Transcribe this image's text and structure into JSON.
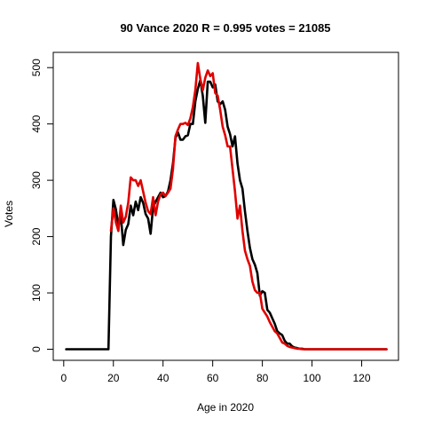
{
  "chart_data": {
    "type": "line",
    "title": "90 Vance 2020 R = 0.995 votes = 21085",
    "xlabel": "Age in 2020",
    "ylabel": "Votes",
    "xlim": [
      1,
      130
    ],
    "ylim": [
      0,
      510
    ],
    "xticks": [
      0,
      20,
      40,
      60,
      80,
      100,
      120
    ],
    "yticks": [
      0,
      100,
      200,
      300,
      400,
      500
    ],
    "grid": false,
    "legend": "none",
    "series": [
      {
        "color": "#000000",
        "x": [
          1,
          2,
          3,
          4,
          5,
          6,
          7,
          8,
          9,
          10,
          11,
          12,
          13,
          14,
          15,
          16,
          17,
          18,
          19,
          20,
          21,
          22,
          23,
          24,
          25,
          26,
          27,
          28,
          29,
          30,
          31,
          32,
          33,
          34,
          35,
          36,
          37,
          38,
          39,
          40,
          41,
          42,
          43,
          44,
          45,
          46,
          47,
          48,
          49,
          50,
          51,
          52,
          53,
          54,
          55,
          56,
          57,
          58,
          59,
          60,
          61,
          62,
          63,
          64,
          65,
          66,
          67,
          68,
          69,
          70,
          71,
          72,
          73,
          74,
          75,
          76,
          77,
          78,
          79,
          80,
          81,
          82,
          83,
          84,
          85,
          86,
          87,
          88,
          89,
          90,
          91,
          92,
          93,
          94,
          95,
          96,
          97,
          98,
          99,
          100,
          101,
          102,
          103,
          104,
          105,
          106,
          107,
          108,
          109,
          110,
          111,
          112,
          113,
          114,
          115,
          116,
          117,
          118,
          119,
          120,
          121,
          122,
          123,
          124,
          125,
          126,
          127,
          128,
          129,
          130
        ],
        "y": [
          0,
          0,
          0,
          0,
          0,
          0,
          0,
          0,
          0,
          0,
          0,
          0,
          0,
          0,
          0,
          0,
          0,
          0,
          200,
          265,
          248,
          218,
          238,
          185,
          212,
          222,
          255,
          238,
          262,
          247,
          270,
          260,
          240,
          232,
          205,
          252,
          262,
          270,
          278,
          270,
          272,
          280,
          300,
          330,
          375,
          385,
          372,
          372,
          378,
          380,
          400,
          400,
          440,
          462,
          478,
          450,
          402,
          475,
          475,
          465,
          470,
          440,
          435,
          440,
          425,
          395,
          382,
          360,
          378,
          330,
          300,
          285,
          245,
          210,
          180,
          160,
          150,
          135,
          95,
          103,
          100,
          70,
          65,
          55,
          45,
          32,
          28,
          25,
          15,
          10,
          10,
          5,
          3,
          2,
          1,
          1,
          0,
          0,
          0,
          0,
          0,
          0,
          0,
          0,
          0,
          0,
          0,
          0,
          0,
          0,
          0,
          0,
          0,
          0,
          0,
          0,
          0,
          0,
          0,
          0,
          0,
          0,
          0,
          0,
          0,
          0,
          0,
          0,
          0,
          0
        ]
      },
      {
        "color": "#e00000",
        "x": [
          19,
          20,
          21,
          22,
          23,
          24,
          25,
          26,
          27,
          28,
          29,
          30,
          31,
          32,
          33,
          34,
          35,
          36,
          37,
          38,
          39,
          40,
          41,
          42,
          43,
          44,
          45,
          46,
          47,
          48,
          49,
          50,
          51,
          52,
          53,
          54,
          55,
          56,
          57,
          58,
          59,
          60,
          61,
          62,
          63,
          64,
          65,
          66,
          67,
          68,
          69,
          70,
          71,
          72,
          73,
          74,
          75,
          76,
          77,
          78,
          79,
          80,
          81,
          82,
          83,
          84,
          85,
          86,
          87,
          88,
          89,
          90,
          91,
          92,
          93,
          94,
          95,
          96,
          97,
          98,
          99,
          100,
          101,
          102,
          103,
          104,
          105,
          106,
          107,
          108,
          109,
          110,
          111,
          112,
          113,
          114,
          115,
          116,
          117,
          118,
          119,
          120,
          121,
          122,
          123,
          124,
          125,
          126,
          127,
          128,
          129,
          130
        ],
        "y": [
          210,
          250,
          225,
          210,
          255,
          225,
          235,
          260,
          305,
          300,
          300,
          290,
          300,
          280,
          260,
          245,
          240,
          270,
          238,
          262,
          275,
          278,
          272,
          278,
          285,
          320,
          378,
          390,
          400,
          400,
          402,
          398,
          410,
          430,
          460,
          508,
          480,
          460,
          482,
          495,
          485,
          490,
          455,
          450,
          425,
          395,
          380,
          360,
          360,
          320,
          280,
          232,
          255,
          210,
          175,
          160,
          148,
          120,
          105,
          100,
          100,
          72,
          65,
          58,
          48,
          40,
          32,
          28,
          20,
          12,
          10,
          6,
          4,
          3,
          2,
          1,
          1,
          0,
          0,
          0,
          0,
          0,
          0,
          0,
          0,
          0,
          0,
          0,
          0,
          0,
          0,
          0,
          0,
          0,
          0,
          0,
          0,
          0,
          0,
          0,
          0,
          0,
          0,
          0,
          0,
          0,
          0,
          0,
          0,
          0,
          0,
          0
        ]
      }
    ]
  }
}
